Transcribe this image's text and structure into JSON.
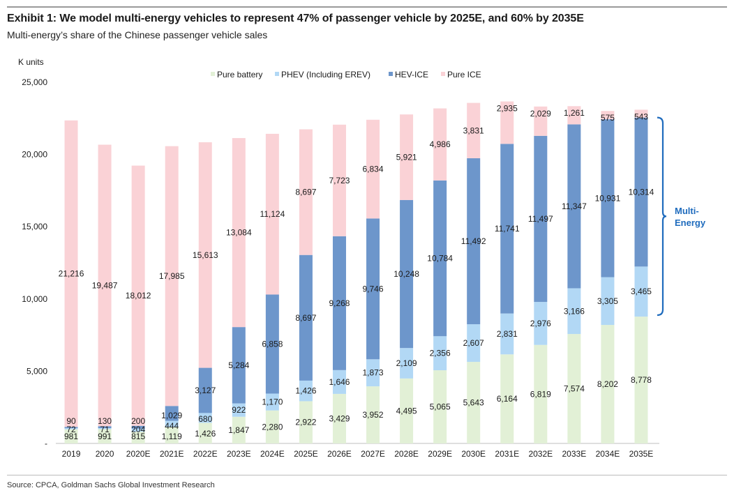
{
  "header": {
    "title": "Exhibit 1: We model multi-energy vehicles to represent 47% of passenger vehicle by 2025E, and 60% by 2035E",
    "subtitle": "Multi-energy’s share of the Chinese passenger vehicle sales"
  },
  "footer": {
    "source": "Source: CPCA, Goldman Sachs Global Investment Research"
  },
  "chart_data": {
    "type": "bar",
    "stacked": true,
    "ylabel": "K units",
    "ylim": [
      0,
      25000
    ],
    "yticks": [
      0,
      5000,
      10000,
      15000,
      20000,
      25000
    ],
    "ytick_labels": [
      "-",
      "5,000",
      "10,000",
      "15,000",
      "20,000",
      "25,000"
    ],
    "grid": false,
    "legend_position": "top",
    "categories": [
      "2019",
      "2020",
      "2020E",
      "2021E",
      "2022E",
      "2023E",
      "2024E",
      "2025E",
      "2026E",
      "2027E",
      "2028E",
      "2029E",
      "2030E",
      "2031E",
      "2032E",
      "2033E",
      "2034E",
      "2035E"
    ],
    "series": [
      {
        "name": "Pure battery",
        "color": "#e2f0d6",
        "values": [
          981,
          991,
          815,
          1119,
          1426,
          1847,
          2280,
          2922,
          3429,
          3952,
          4495,
          5065,
          5643,
          6164,
          6819,
          7574,
          8202,
          8778
        ],
        "labels": [
          "981",
          "991",
          "815",
          "1,119",
          "1,426",
          "1,847",
          "2,280",
          "2,922",
          "3,429",
          "3,952",
          "4,495",
          "5,065",
          "5,643",
          "6,164",
          "6,819",
          "7,574",
          "8,202",
          "8,778"
        ]
      },
      {
        "name": "PHEV (Including EREV)",
        "color": "#b2d8f5",
        "values": [
          72,
          71,
          204,
          444,
          680,
          922,
          1170,
          1426,
          1646,
          1873,
          2109,
          2356,
          2607,
          2831,
          2976,
          3166,
          3305,
          3465
        ],
        "labels": [
          "72",
          "71",
          "204",
          "444",
          "680",
          "922",
          "1,170",
          "1,426",
          "1,646",
          "1,873",
          "2,109",
          "2,356",
          "2,607",
          "2,831",
          "2,976",
          "3,166",
          "3,305",
          "3,465"
        ]
      },
      {
        "name": "HEV-ICE",
        "color": "#6d96cb",
        "values": [
          90,
          130,
          200,
          1029,
          3127,
          5284,
          6858,
          8697,
          9268,
          9746,
          10248,
          10784,
          11492,
          11741,
          11497,
          11347,
          10931,
          10314
        ],
        "labels": [
          "90",
          "130",
          "200",
          "1,029",
          "3,127",
          "5,284",
          "6,858",
          "8,697",
          "9,268",
          "9,746",
          "10,248",
          "10,784",
          "11,492",
          "11,741",
          "11,497",
          "11,347",
          "10,931",
          "10,314"
        ]
      },
      {
        "name": "Pure ICE",
        "color": "#fad2d6",
        "values": [
          21216,
          19487,
          18012,
          17985,
          15613,
          13084,
          11124,
          8697,
          7723,
          6834,
          5921,
          4986,
          3831,
          2935,
          2029,
          1261,
          575,
          543
        ],
        "labels": [
          "21,216",
          "19,487",
          "18,012",
          "17,985",
          "15,613",
          "13,084",
          "11,124",
          "8,697",
          "7,723",
          "6,834",
          "5,921",
          "4,986",
          "3,831",
          "2,935",
          "2,029",
          "1,261",
          "575",
          "543"
        ]
      }
    ],
    "annotation": {
      "text": [
        "Multi-",
        "Energy"
      ],
      "color": "#1e6bbd"
    }
  }
}
